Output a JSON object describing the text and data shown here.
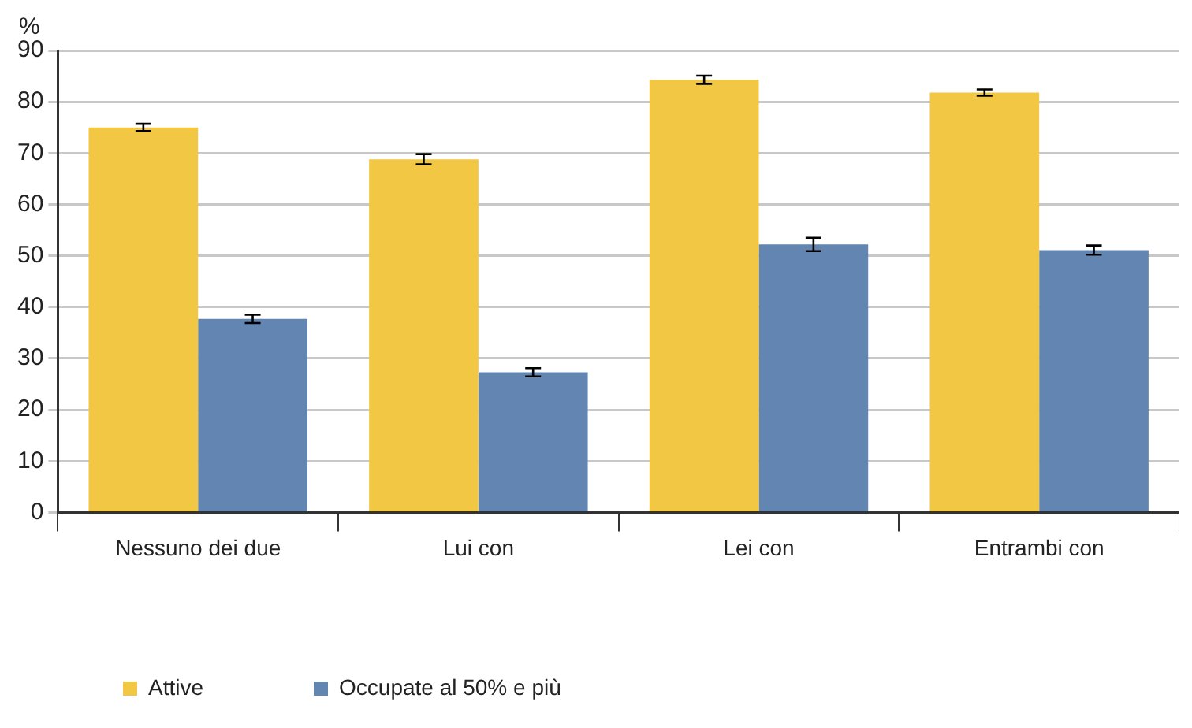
{
  "chart_data": {
    "type": "bar",
    "ylabel": "%",
    "categories": [
      "Nessuno dei due",
      "Lui con",
      "Lei con",
      "Entrambi con"
    ],
    "series": [
      {
        "name": "Attive",
        "color": "#f2c744",
        "values": [
          75,
          68.8,
          84.3,
          81.8
        ],
        "errors": [
          0.7,
          1,
          0.8,
          0.6
        ]
      },
      {
        "name": "Occupate al 50% e più",
        "color": "#6285b1",
        "values": [
          37.7,
          27.3,
          52.2,
          51.1
        ],
        "errors": [
          0.8,
          0.8,
          1.3,
          0.9
        ]
      }
    ],
    "ylim": [
      0,
      90
    ],
    "yticks": [
      0,
      10,
      20,
      30,
      40,
      50,
      60,
      70,
      80,
      90
    ],
    "grid": "y",
    "legend": "bottom left"
  }
}
